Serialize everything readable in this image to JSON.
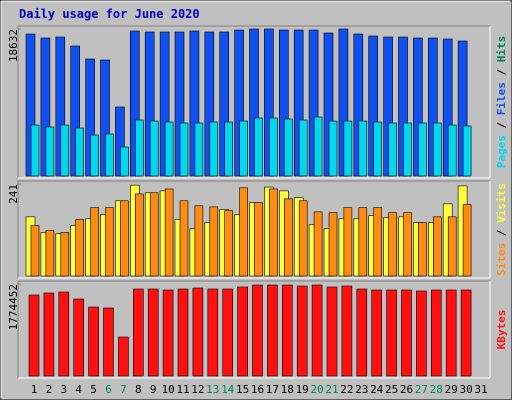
{
  "chart_data": [
    {
      "type": "bar",
      "title": "Daily usage for June 2020",
      "categories": [
        "1",
        "2",
        "3",
        "4",
        "5",
        "6",
        "7",
        "8",
        "9",
        "10",
        "11",
        "12",
        "13",
        "14",
        "15",
        "16",
        "17",
        "18",
        "19",
        "20",
        "21",
        "22",
        "23",
        "24",
        "25",
        "26",
        "27",
        "28",
        "29",
        "30",
        "31"
      ],
      "category_colors": [
        "#000000",
        "#000000",
        "#000000",
        "#000000",
        "#000000",
        "#00805c",
        "#00805c",
        "#000000",
        "#000000",
        "#000000",
        "#000000",
        "#000000",
        "#00805c",
        "#00805c",
        "#000000",
        "#000000",
        "#000000",
        "#000000",
        "#000000",
        "#00805c",
        "#00805c",
        "#000000",
        "#000000",
        "#000000",
        "#000000",
        "#000000",
        "#00805c",
        "#00805c",
        "#000000",
        "#000000",
        "#000000"
      ],
      "ylim": [
        0,
        18632
      ],
      "yticks": [
        18632
      ],
      "legend_separator": " / ",
      "legend_extra": {
        "name": "Hits",
        "color": "#00805c"
      },
      "series": [
        {
          "name": "Files",
          "color": "#1050f0",
          "values": [
            17998,
            17491,
            17618,
            16477,
            14830,
            14703,
            8746,
            18378,
            18252,
            18252,
            18252,
            18378,
            18252,
            18252,
            18505,
            18632,
            18632,
            18505,
            18505,
            18505,
            18125,
            18632,
            17998,
            17745,
            17618,
            17618,
            17491,
            17491,
            17365,
            17111,
            null
          ]
        },
        {
          "name": "Pages",
          "color": "#00d8f0",
          "values": [
            6464,
            6211,
            6464,
            6084,
            5197,
            5324,
            3676,
            7098,
            6971,
            6845,
            6718,
            6718,
            6845,
            6845,
            6971,
            7352,
            7352,
            7225,
            7098,
            7478,
            6971,
            6971,
            6971,
            6845,
            6718,
            6718,
            6718,
            6718,
            6464,
            6338,
            null
          ]
        }
      ]
    },
    {
      "type": "bar",
      "ylim": [
        0,
        241
      ],
      "yticks": [
        241
      ],
      "legend_separator": " / ",
      "series": [
        {
          "name": "Visits",
          "color": "#ffff40",
          "values": [
            155,
            114,
            111,
            132,
            150,
            161,
            197,
            238,
            218,
            223,
            148,
            124,
            140,
            174,
            161,
            192,
            233,
            223,
            205,
            135,
            124,
            150,
            150,
            158,
            153,
            155,
            140,
            140,
            189,
            236,
            null
          ]
        },
        {
          "name": "Sites",
          "color": "#ff8c10",
          "values": [
            132,
            119,
            114,
            148,
            179,
            179,
            197,
            215,
            218,
            228,
            197,
            184,
            181,
            171,
            231,
            192,
            228,
            202,
            197,
            168,
            166,
            179,
            179,
            179,
            166,
            166,
            140,
            155,
            155,
            187,
            null
          ]
        }
      ]
    },
    {
      "type": "bar",
      "ylim": [
        0,
        1774452
      ],
      "yticks": [
        1774452
      ],
      "series": [
        {
          "name": "KBytes",
          "color": "#ff1010",
          "values": [
            1562288,
            1600863,
            1620150,
            1485138,
            1330838,
            1311550,
            752213,
            1678013,
            1678013,
            1658725,
            1678013,
            1697300,
            1678013,
            1678013,
            1716588,
            1755163,
            1755163,
            1755163,
            1735875,
            1755163,
            1716588,
            1735875,
            1678013,
            1658725,
            1658725,
            1658725,
            1639438,
            1658725,
            1658725,
            1658725,
            null
          ]
        }
      ]
    }
  ]
}
